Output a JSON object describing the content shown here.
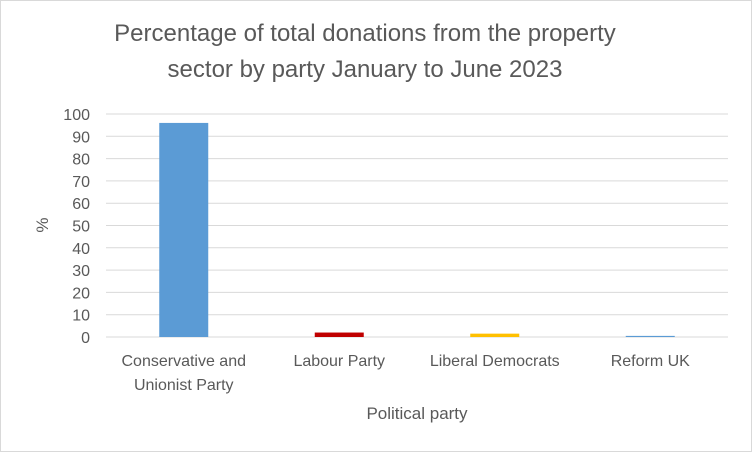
{
  "chart_data": {
    "type": "bar",
    "title_lines": [
      "Percentage of total donations from the property",
      "sector by party January to June 2023"
    ],
    "categories": [
      [
        "Conservative and",
        "Unionist Party"
      ],
      [
        "Labour Party"
      ],
      [
        "Liberal Democrats"
      ],
      [
        "Reform UK"
      ]
    ],
    "values": [
      96,
      2,
      1.5,
      0.5
    ],
    "colors": [
      "#5b9bd5",
      "#c00000",
      "#ffc000",
      "#5b9bd5"
    ],
    "xlabel": "Political party",
    "ylabel": "%",
    "ylim": [
      0,
      100
    ],
    "y_ticks": [
      0,
      10,
      20,
      30,
      40,
      50,
      60,
      70,
      80,
      90,
      100
    ],
    "grid": true,
    "legend": "none"
  }
}
